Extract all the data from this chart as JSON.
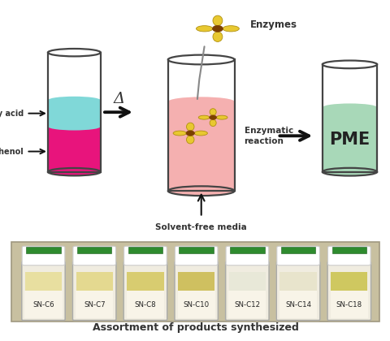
{
  "figure_bg": "#ffffff",
  "fatty_acid_color": "#80d8d8",
  "panthenol_color": "#e8147c",
  "reaction_color": "#f5b0b0",
  "product_color": "#a8d8b8",
  "enzyme_yellow": "#e8c830",
  "enzyme_dark": "#7B3F00",
  "label_fatty_acid": "Fatty acid",
  "label_panthenol": "Panthenol",
  "label_delta": "Δ",
  "label_enzymes": "Enzymes",
  "label_enzymatic": "Enzymatic\nreaction",
  "label_solvent": "Solvent-free media",
  "label_pme": "PME",
  "label_bottom": "Assortment of products synthesized",
  "vial_labels": [
    "SN-C6",
    "SN-C7",
    "SN-C8",
    "SN-C10",
    "SN-C12",
    "SN-C14",
    "SN-C18"
  ],
  "vial_liquid_colors": [
    "#e8dfa0",
    "#e4d990",
    "#d8cc70",
    "#cfc060",
    "#e8e8d8",
    "#e8e4cc",
    "#cfc860"
  ],
  "arrow_color": "#111111",
  "text_color": "#333333",
  "cylinder_edge": "#444444",
  "photo_bg": "#c8c0a0",
  "photo_border": "#a09880"
}
